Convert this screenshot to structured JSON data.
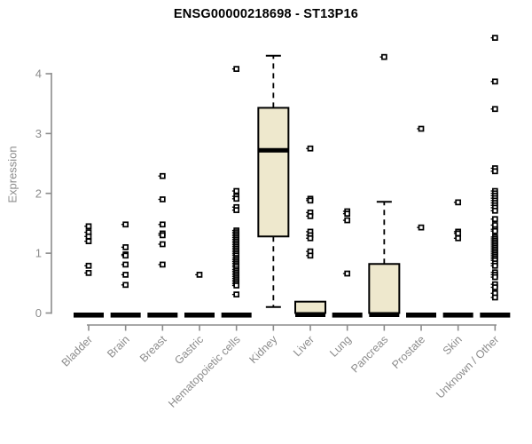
{
  "chart_data": {
    "type": "boxplot",
    "title": "ENSG00000218698 - ST13P16",
    "ylabel": "Expression",
    "xlabel": "",
    "ylim": [
      0,
      4.65
    ],
    "yticks": [
      0,
      1,
      2,
      3,
      4
    ],
    "legend": "none",
    "grid": false,
    "marker": "open-square",
    "colors": {
      "box_fill": "#EEE8CD",
      "box_border": "#000000",
      "median": "#000000",
      "axis": "#8C8C8C",
      "label_text": "#8C8C8C",
      "title_text": "#000000",
      "outlier_fill": "#FFFFFF"
    },
    "boxes": [
      {
        "category": "Bladder",
        "q1": 0,
        "median": 0,
        "q3": 0,
        "whisker_low": 0,
        "whisker_high": 0,
        "outliers": [
          1.45,
          1.35,
          1.28,
          1.2,
          0.79,
          0.67
        ]
      },
      {
        "category": "Brain",
        "q1": 0,
        "median": 0,
        "q3": 0,
        "whisker_low": 0,
        "whisker_high": 0,
        "outliers": [
          1.48,
          1.1,
          0.98,
          0.96,
          0.81,
          0.64,
          0.47
        ]
      },
      {
        "category": "Breast",
        "q1": 0,
        "median": 0,
        "q3": 0,
        "whisker_low": 0,
        "whisker_high": 0,
        "outliers": [
          2.29,
          1.9,
          1.48,
          1.33,
          1.3,
          1.15,
          0.81
        ]
      },
      {
        "category": "Gastric",
        "q1": 0,
        "median": 0,
        "q3": 0,
        "whisker_low": 0,
        "whisker_high": 0,
        "outliers": [
          0.64
        ]
      },
      {
        "category": "Hematopoietic cells",
        "q1": 0,
        "median": 0,
        "q3": 0,
        "whisker_low": 0,
        "whisker_high": 0,
        "outliers": [
          4.08,
          2.04,
          1.95,
          1.91,
          1.77,
          1.72,
          1.38,
          1.35,
          1.32,
          1.29,
          1.26,
          1.23,
          1.2,
          1.17,
          1.14,
          1.11,
          1.08,
          1.05,
          1.02,
          0.99,
          0.96,
          0.92,
          0.89,
          0.86,
          0.83,
          0.8,
          0.77,
          0.73,
          0.7,
          0.67,
          0.64,
          0.61,
          0.58,
          0.55,
          0.52,
          0.49,
          0.46,
          0.31
        ]
      },
      {
        "category": "Kidney",
        "q1": 1.28,
        "median": 2.72,
        "q3": 3.43,
        "whisker_low": 0.1,
        "whisker_high": 4.3,
        "outliers": []
      },
      {
        "category": "Liver",
        "q1": 0,
        "median": 0,
        "q3": 0.19,
        "whisker_low": 0,
        "whisker_high": 0.19,
        "outliers": [
          2.75,
          1.91,
          1.88,
          1.68,
          1.62,
          1.36,
          1.3,
          1.25,
          1.03,
          0.96
        ]
      },
      {
        "category": "Lung",
        "q1": 0,
        "median": 0,
        "q3": 0,
        "whisker_low": 0,
        "whisker_high": 0,
        "outliers": [
          1.7,
          1.66,
          1.55,
          0.66
        ]
      },
      {
        "category": "Pancreas",
        "q1": 0,
        "median": 0,
        "q3": 0.82,
        "whisker_low": 0,
        "whisker_high": 1.86,
        "outliers": [
          4.28
        ]
      },
      {
        "category": "Prostate",
        "q1": 0,
        "median": 0,
        "q3": 0,
        "whisker_low": 0,
        "whisker_high": 0,
        "outliers": [
          3.08,
          1.43
        ]
      },
      {
        "category": "Skin",
        "q1": 0,
        "median": 0,
        "q3": 0,
        "whisker_low": 0,
        "whisker_high": 0,
        "outliers": [
          1.85,
          1.36,
          1.33,
          1.25
        ]
      },
      {
        "category": "Unknown / Other",
        "q1": 0,
        "median": 0,
        "q3": 0,
        "whisker_low": 0,
        "whisker_high": 0,
        "outliers": [
          4.6,
          3.87,
          3.41,
          2.42,
          2.37,
          2.04,
          2.0,
          1.96,
          1.92,
          1.88,
          1.84,
          1.8,
          1.76,
          1.71,
          1.57,
          1.47,
          1.4,
          1.37,
          1.27,
          1.24,
          1.21,
          1.18,
          1.15,
          1.12,
          1.09,
          1.06,
          1.03,
          1.0,
          0.97,
          0.94,
          0.91,
          0.88,
          0.83,
          0.79,
          0.68,
          0.64,
          0.6,
          0.48,
          0.43,
          0.33,
          0.26
        ]
      }
    ]
  }
}
